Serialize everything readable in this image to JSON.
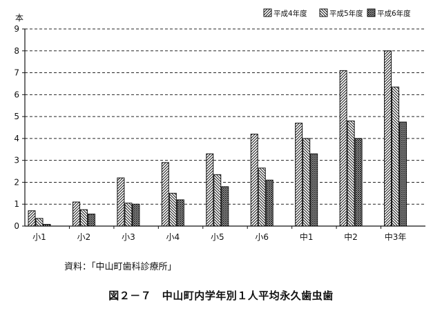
{
  "chart_data": {
    "type": "bar",
    "y_unit": "本",
    "categories": [
      "小1",
      "小2",
      "小3",
      "小4",
      "小5",
      "小6",
      "中1",
      "中2",
      "中3年"
    ],
    "series": [
      {
        "name": "平成4年度",
        "values": [
          0.7,
          1.1,
          2.2,
          2.9,
          3.3,
          4.2,
          4.7,
          7.1,
          8.0
        ]
      },
      {
        "name": "平成5年度",
        "values": [
          0.35,
          0.75,
          1.05,
          1.5,
          2.35,
          2.65,
          4.0,
          4.8,
          6.35
        ]
      },
      {
        "name": "平成6年度",
        "values": [
          0.08,
          0.55,
          1.0,
          1.2,
          1.8,
          2.1,
          3.3,
          4.0,
          4.75
        ]
      }
    ],
    "ylim": [
      0,
      9
    ],
    "y_ticks": [
      "0",
      "1",
      "2",
      "3",
      "4",
      "5",
      "6",
      "7",
      "8",
      "9"
    ],
    "grid": "horizontal dashed",
    "legend_position": "top-right",
    "series_patterns": [
      "diagonal-forward",
      "diagonal-backward",
      "crosshatch"
    ]
  },
  "source": "資料：「中山町歯科診療所」",
  "caption": "図２－７　中山町内学年別１人平均永久歯虫歯"
}
